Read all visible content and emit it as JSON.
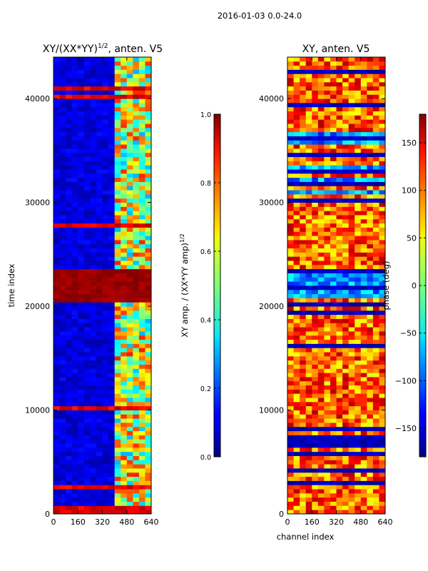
{
  "figure": {
    "suptitle": "2016-01-03 0.0-24.0"
  },
  "chart_data": [
    {
      "type": "heatmap",
      "title_main": "XY/(XX*YY)",
      "title_sup": "1/2",
      "title_suffix": ", anten. V5",
      "xlabel": "",
      "ylabel": "time index",
      "xlim": [
        0,
        640
      ],
      "ylim": [
        0,
        44000
      ],
      "xticks": [
        0,
        160,
        320,
        480,
        640
      ],
      "yticks": [
        0,
        10000,
        20000,
        30000,
        40000
      ],
      "colorbar": {
        "label_main": "XY amp. / (XX*YY amp)",
        "label_sup": "1/2",
        "range": [
          0.0,
          1.0
        ],
        "ticks": [
          "0.0",
          "0.2",
          "0.4",
          "0.6",
          "0.8",
          "1.0"
        ],
        "colormap": "jet"
      },
      "saturated_rows_range": [
        20500,
        23500
      ],
      "active_channel_range": [
        390,
        640
      ]
    },
    {
      "type": "heatmap",
      "title": "XY, anten. V5",
      "xlabel": "channel index",
      "ylabel": "",
      "xlim": [
        0,
        640
      ],
      "ylim": [
        0,
        44000
      ],
      "xticks": [
        0,
        160,
        320,
        480,
        640
      ],
      "yticks": [
        0,
        10000,
        20000,
        30000,
        40000
      ],
      "colorbar": {
        "label": "phase (deg)",
        "range": [
          -180,
          180
        ],
        "ticks": [
          "150",
          "100",
          "50",
          "0",
          "−50",
          "−100",
          "−150"
        ],
        "colormap": "jet"
      }
    }
  ]
}
